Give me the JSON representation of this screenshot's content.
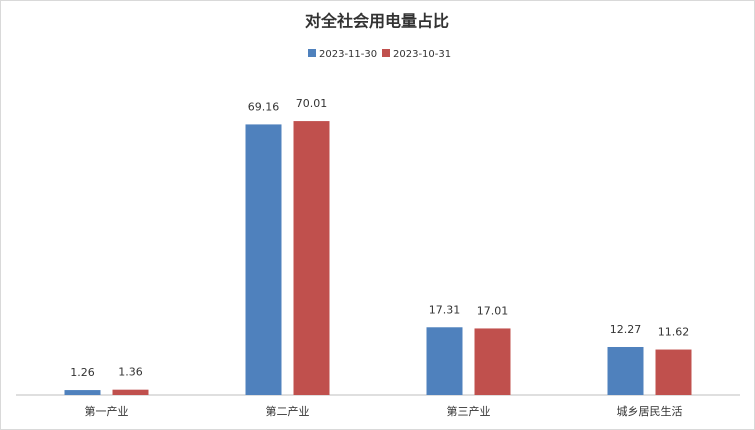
{
  "chart_data": {
    "type": "bar",
    "title": "对全社会用电量占比",
    "categories": [
      "第一产业",
      "第二产业",
      "第三产业",
      "城乡居民生活"
    ],
    "series": [
      {
        "name": "2023-11-30",
        "color": "#4f81bd",
        "values": [
          1.26,
          69.16,
          17.31,
          12.27
        ]
      },
      {
        "name": "2023-10-31",
        "color": "#c0504d",
        "values": [
          1.36,
          70.01,
          17.01,
          11.62
        ]
      }
    ],
    "ylim": [
      0,
      80
    ]
  }
}
